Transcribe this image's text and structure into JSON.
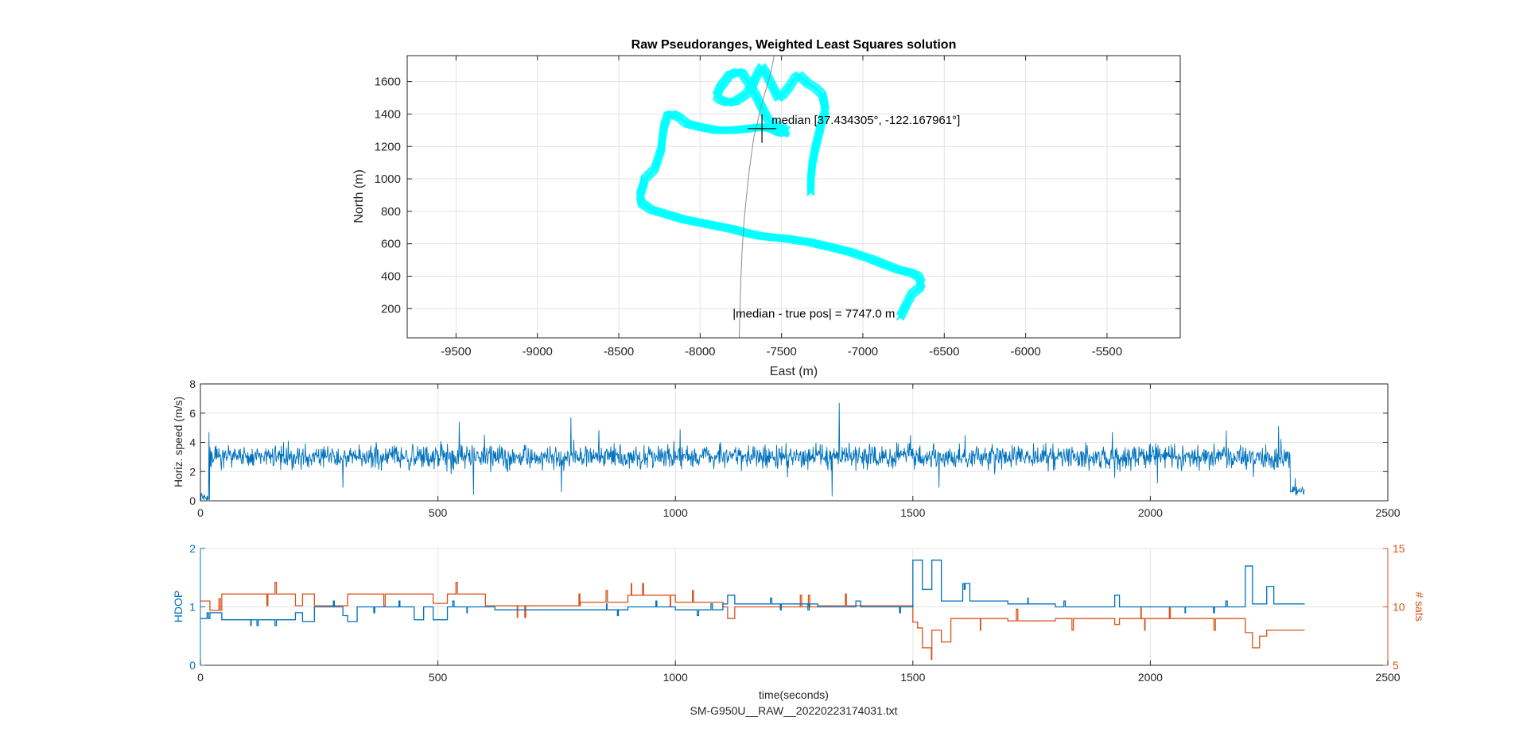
{
  "figure": {
    "footer": "SM-G950U__RAW__20220223174031.txt"
  },
  "chart_data": [
    {
      "type": "scatter",
      "title": "Raw Pseudoranges, Weighted Least Squares solution",
      "xlabel": "East (m)",
      "ylabel": "North (m)",
      "xlim": [
        -9800,
        -5050
      ],
      "ylim": [
        20,
        1760
      ],
      "xticks": [
        -9500,
        -9000,
        -8500,
        -8000,
        -7500,
        -7000,
        -6500,
        -6000,
        -5500
      ],
      "yticks": [
        200,
        400,
        600,
        800,
        1000,
        1200,
        1400,
        1600
      ],
      "grid": true,
      "series": [
        {
          "style": "cyan x markers",
          "color": "#00ffff",
          "x": [
            -6770,
            -6730,
            -6700,
            -6650,
            -6640,
            -6660,
            -6700,
            -6780,
            -6860,
            -6960,
            -7080,
            -7200,
            -7330,
            -7460,
            -7560,
            -7640,
            -7730,
            -7800,
            -7900,
            -8000,
            -8100,
            -8200,
            -8300,
            -8360,
            -8370,
            -8350,
            -8340,
            -8280,
            -8240,
            -8230,
            -8220,
            -8200,
            -8170,
            -8130,
            -8080,
            -8000,
            -7900,
            -7800,
            -7700,
            -7620,
            -7560,
            -7520,
            -7480,
            -7470,
            -7530,
            -7580,
            -7600,
            -7620,
            -7640,
            -7660,
            -7690,
            -7720,
            -7740,
            -7770,
            -7820,
            -7850,
            -7880,
            -7900,
            -7880,
            -7830,
            -7780,
            -7720,
            -7680,
            -7660,
            -7640,
            -7620,
            -7600,
            -7580,
            -7560,
            -7540,
            -7520,
            -7490,
            -7450,
            -7420,
            -7390,
            -7370,
            -7340,
            -7290,
            -7250,
            -7240,
            -7230,
            -7250,
            -7270,
            -7290,
            -7310,
            -7320,
            -7320
          ],
          "y": [
            150,
            230,
            290,
            330,
            360,
            400,
            420,
            440,
            470,
            510,
            550,
            580,
            610,
            630,
            640,
            650,
            670,
            690,
            710,
            730,
            750,
            780,
            810,
            850,
            900,
            960,
            1000,
            1060,
            1180,
            1270,
            1330,
            1390,
            1400,
            1380,
            1340,
            1320,
            1300,
            1300,
            1310,
            1320,
            1310,
            1290,
            1280,
            1300,
            1330,
            1360,
            1400,
            1440,
            1480,
            1520,
            1570,
            1620,
            1650,
            1660,
            1640,
            1600,
            1560,
            1510,
            1490,
            1470,
            1480,
            1520,
            1570,
            1620,
            1660,
            1690,
            1660,
            1620,
            1580,
            1540,
            1500,
            1520,
            1570,
            1620,
            1640,
            1620,
            1590,
            1560,
            1520,
            1480,
            1420,
            1360,
            1280,
            1200,
            1100,
            1000,
            910
          ]
        },
        {
          "style": "thin gray reference path",
          "color": "#8c8c8c",
          "x": [
            -7760,
            -7755,
            -7750,
            -7742,
            -7730,
            -7715,
            -7700,
            -7685,
            -7670,
            -7650,
            -7630,
            -7610,
            -7590,
            -7565,
            -7545
          ],
          "y": [
            20,
            200,
            380,
            560,
            740,
            900,
            1040,
            1150,
            1260,
            1340,
            1430,
            1500,
            1570,
            1660,
            1760
          ]
        }
      ],
      "annotations": [
        {
          "x": -7620,
          "y": 1310,
          "marker": "plus",
          "text": "median   [37.434305°, -122.167961°]"
        },
        {
          "x": -7800,
          "y": 170,
          "text": "|median - true pos| = 7747.0 m"
        }
      ]
    },
    {
      "type": "line",
      "xlabel": "",
      "ylabel": "Horiz. speed (m/s)",
      "xlim": [
        0,
        2500
      ],
      "ylim": [
        0,
        8
      ],
      "xticks": [
        0,
        500,
        1000,
        1500,
        2000,
        2500
      ],
      "yticks": [
        0,
        2,
        4,
        6,
        8
      ],
      "grid": true,
      "color": "#0072bd",
      "x_end": 2325,
      "segments": [
        {
          "from": 0,
          "to": 20,
          "mean": 0.2,
          "noise": 0.2
        },
        {
          "from": 20,
          "to": 2295,
          "mean": 3.0,
          "noise": 0.55
        },
        {
          "from": 2295,
          "to": 2325,
          "mean": 0.6,
          "noise": 0.25
        }
      ],
      "spikes": [
        {
          "x": 18,
          "y": 4.7
        },
        {
          "x": 300,
          "y": 0.9
        },
        {
          "x": 545,
          "y": 5.4
        },
        {
          "x": 575,
          "y": 0.4
        },
        {
          "x": 780,
          "y": 5.7
        },
        {
          "x": 760,
          "y": 0.6
        },
        {
          "x": 1010,
          "y": 4.9
        },
        {
          "x": 1345,
          "y": 6.7
        },
        {
          "x": 1330,
          "y": 0.3
        },
        {
          "x": 1495,
          "y": 4.5
        },
        {
          "x": 1555,
          "y": 0.9
        },
        {
          "x": 1610,
          "y": 4.5
        },
        {
          "x": 1920,
          "y": 4.7
        },
        {
          "x": 2160,
          "y": 4.8
        },
        {
          "x": 2270,
          "y": 5.1
        },
        {
          "x": 2015,
          "y": 1.2
        }
      ]
    },
    {
      "type": "line",
      "xlabel": "time(seconds)",
      "ylabel": "HDOP",
      "y2label": "# sats",
      "xlim": [
        0,
        2500
      ],
      "ylim": [
        0,
        2
      ],
      "y2lim": [
        5,
        15
      ],
      "xticks": [
        0,
        500,
        1000,
        1500,
        2000,
        2500
      ],
      "yticks": [
        0,
        1,
        2
      ],
      "y2ticks": [
        5,
        10,
        15
      ],
      "grid": true,
      "series": [
        {
          "name": "HDOP",
          "axis": "left",
          "color": "#0072bd",
          "steps": [
            [
              0,
              0.8
            ],
            [
              20,
              0.9
            ],
            [
              45,
              0.78
            ],
            [
              200,
              0.9
            ],
            [
              215,
              0.75
            ],
            [
              240,
              1.0
            ],
            [
              300,
              0.85
            ],
            [
              310,
              0.75
            ],
            [
              330,
              1.0
            ],
            [
              450,
              0.78
            ],
            [
              470,
              1.0
            ],
            [
              490,
              0.78
            ],
            [
              520,
              1.0
            ],
            [
              620,
              0.95
            ],
            [
              900,
              1.0
            ],
            [
              1000,
              0.95
            ],
            [
              1100,
              1.05
            ],
            [
              1110,
              1.2
            ],
            [
              1125,
              1.05
            ],
            [
              1300,
              1.0
            ],
            [
              1380,
              1.1
            ],
            [
              1390,
              1.0
            ],
            [
              1500,
              1.8
            ],
            [
              1520,
              1.3
            ],
            [
              1540,
              1.8
            ],
            [
              1560,
              1.1
            ],
            [
              1605,
              1.4
            ],
            [
              1620,
              1.1
            ],
            [
              1700,
              1.05
            ],
            [
              1800,
              1.0
            ],
            [
              1925,
              1.2
            ],
            [
              1935,
              1.0
            ],
            [
              2200,
              1.7
            ],
            [
              2215,
              1.05
            ],
            [
              2245,
              1.35
            ],
            [
              2260,
              1.05
            ],
            [
              2325,
              null
            ]
          ]
        },
        {
          "name": "# sats",
          "axis": "right",
          "color": "#d95319",
          "steps": [
            [
              0,
              10.5
            ],
            [
              20,
              9.7
            ],
            [
              45,
              11.1
            ],
            [
              200,
              10.1
            ],
            [
              215,
              11.1
            ],
            [
              240,
              10.1
            ],
            [
              310,
              11.1
            ],
            [
              490,
              10.3
            ],
            [
              520,
              11.1
            ],
            [
              600,
              10.1
            ],
            [
              800,
              10.4
            ],
            [
              900,
              11.0
            ],
            [
              1000,
              10.4
            ],
            [
              1100,
              10.0
            ],
            [
              1110,
              9.0
            ],
            [
              1125,
              10.0
            ],
            [
              1300,
              10.1
            ],
            [
              1500,
              8.7
            ],
            [
              1510,
              8.2
            ],
            [
              1520,
              6.5
            ],
            [
              1540,
              8.0
            ],
            [
              1560,
              7.0
            ],
            [
              1580,
              9.0
            ],
            [
              1700,
              8.8
            ],
            [
              1800,
              9.0
            ],
            [
              1925,
              8.5
            ],
            [
              1935,
              9.0
            ],
            [
              2200,
              7.8
            ],
            [
              2215,
              6.5
            ],
            [
              2230,
              7.5
            ],
            [
              2245,
              8.0
            ],
            [
              2325,
              null
            ]
          ]
        }
      ]
    }
  ]
}
